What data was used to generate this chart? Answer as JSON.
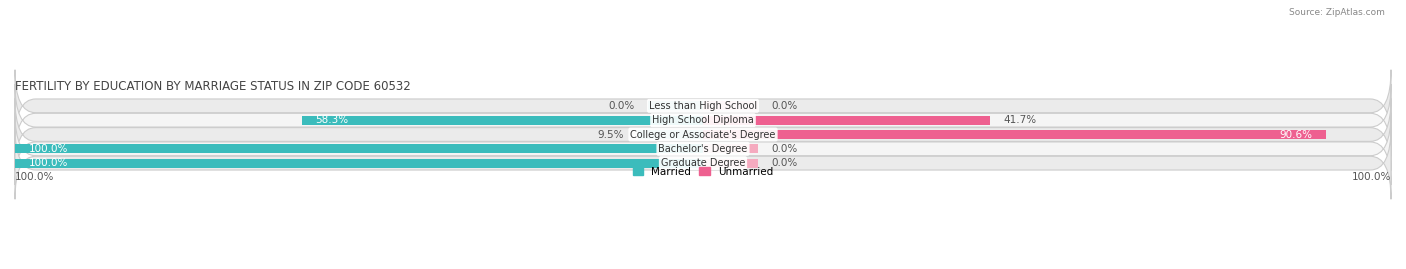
{
  "title": "FERTILITY BY EDUCATION BY MARRIAGE STATUS IN ZIP CODE 60532",
  "source": "Source: ZipAtlas.com",
  "categories": [
    "Less than High School",
    "High School Diploma",
    "College or Associate's Degree",
    "Bachelor's Degree",
    "Graduate Degree"
  ],
  "married": [
    0.0,
    58.3,
    9.5,
    100.0,
    100.0
  ],
  "unmarried": [
    0.0,
    41.7,
    90.6,
    0.0,
    0.0
  ],
  "married_color": "#3BBCBC",
  "unmarried_color": "#EE6090",
  "married_light": "#90D0D8",
  "unmarried_light": "#F5AABF",
  "row_bg_odd": "#EBEBEB",
  "row_bg_even": "#F5F5F5",
  "married_label_inside_color": "#FFFFFF",
  "unmarried_label_inside_color": "#FFFFFF",
  "label_outside_color": "#555555",
  "axis_label_left": "100.0%",
  "axis_label_right": "100.0%",
  "legend_married": "Married",
  "legend_unmarried": "Unmarried",
  "title_fontsize": 8.5,
  "label_fontsize": 7.5,
  "bar_height": 0.62,
  "figsize": [
    14.06,
    2.69
  ],
  "dpi": 100,
  "xlim": 100,
  "zero_stub": 8
}
